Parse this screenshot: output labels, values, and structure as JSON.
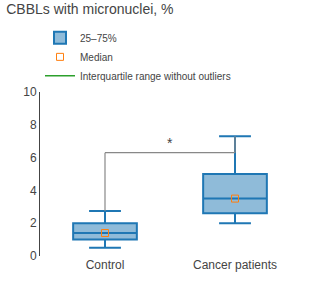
{
  "chart_data": {
    "type": "box",
    "title": "CBBLs with micronuclei, %",
    "categories": [
      "Control",
      "Cancer patients"
    ],
    "q1": [
      1.0,
      2.6
    ],
    "median": [
      1.4,
      3.5
    ],
    "q3": [
      2.0,
      5.0
    ],
    "whisker_low": [
      0.5,
      2.0
    ],
    "whisker_high": [
      2.75,
      7.3
    ],
    "ylim": [
      0,
      10
    ],
    "yticks": [
      0,
      2,
      4,
      6,
      8,
      10
    ],
    "grid": false,
    "legend": "upper left",
    "legend_items": [
      "Median",
      "25–75%",
      "Interquartile range without outliers"
    ],
    "significance": {
      "label": "*",
      "y": 6.3,
      "between": [
        "Control",
        "Cancer patients"
      ],
      "color": "#888888"
    }
  }
}
